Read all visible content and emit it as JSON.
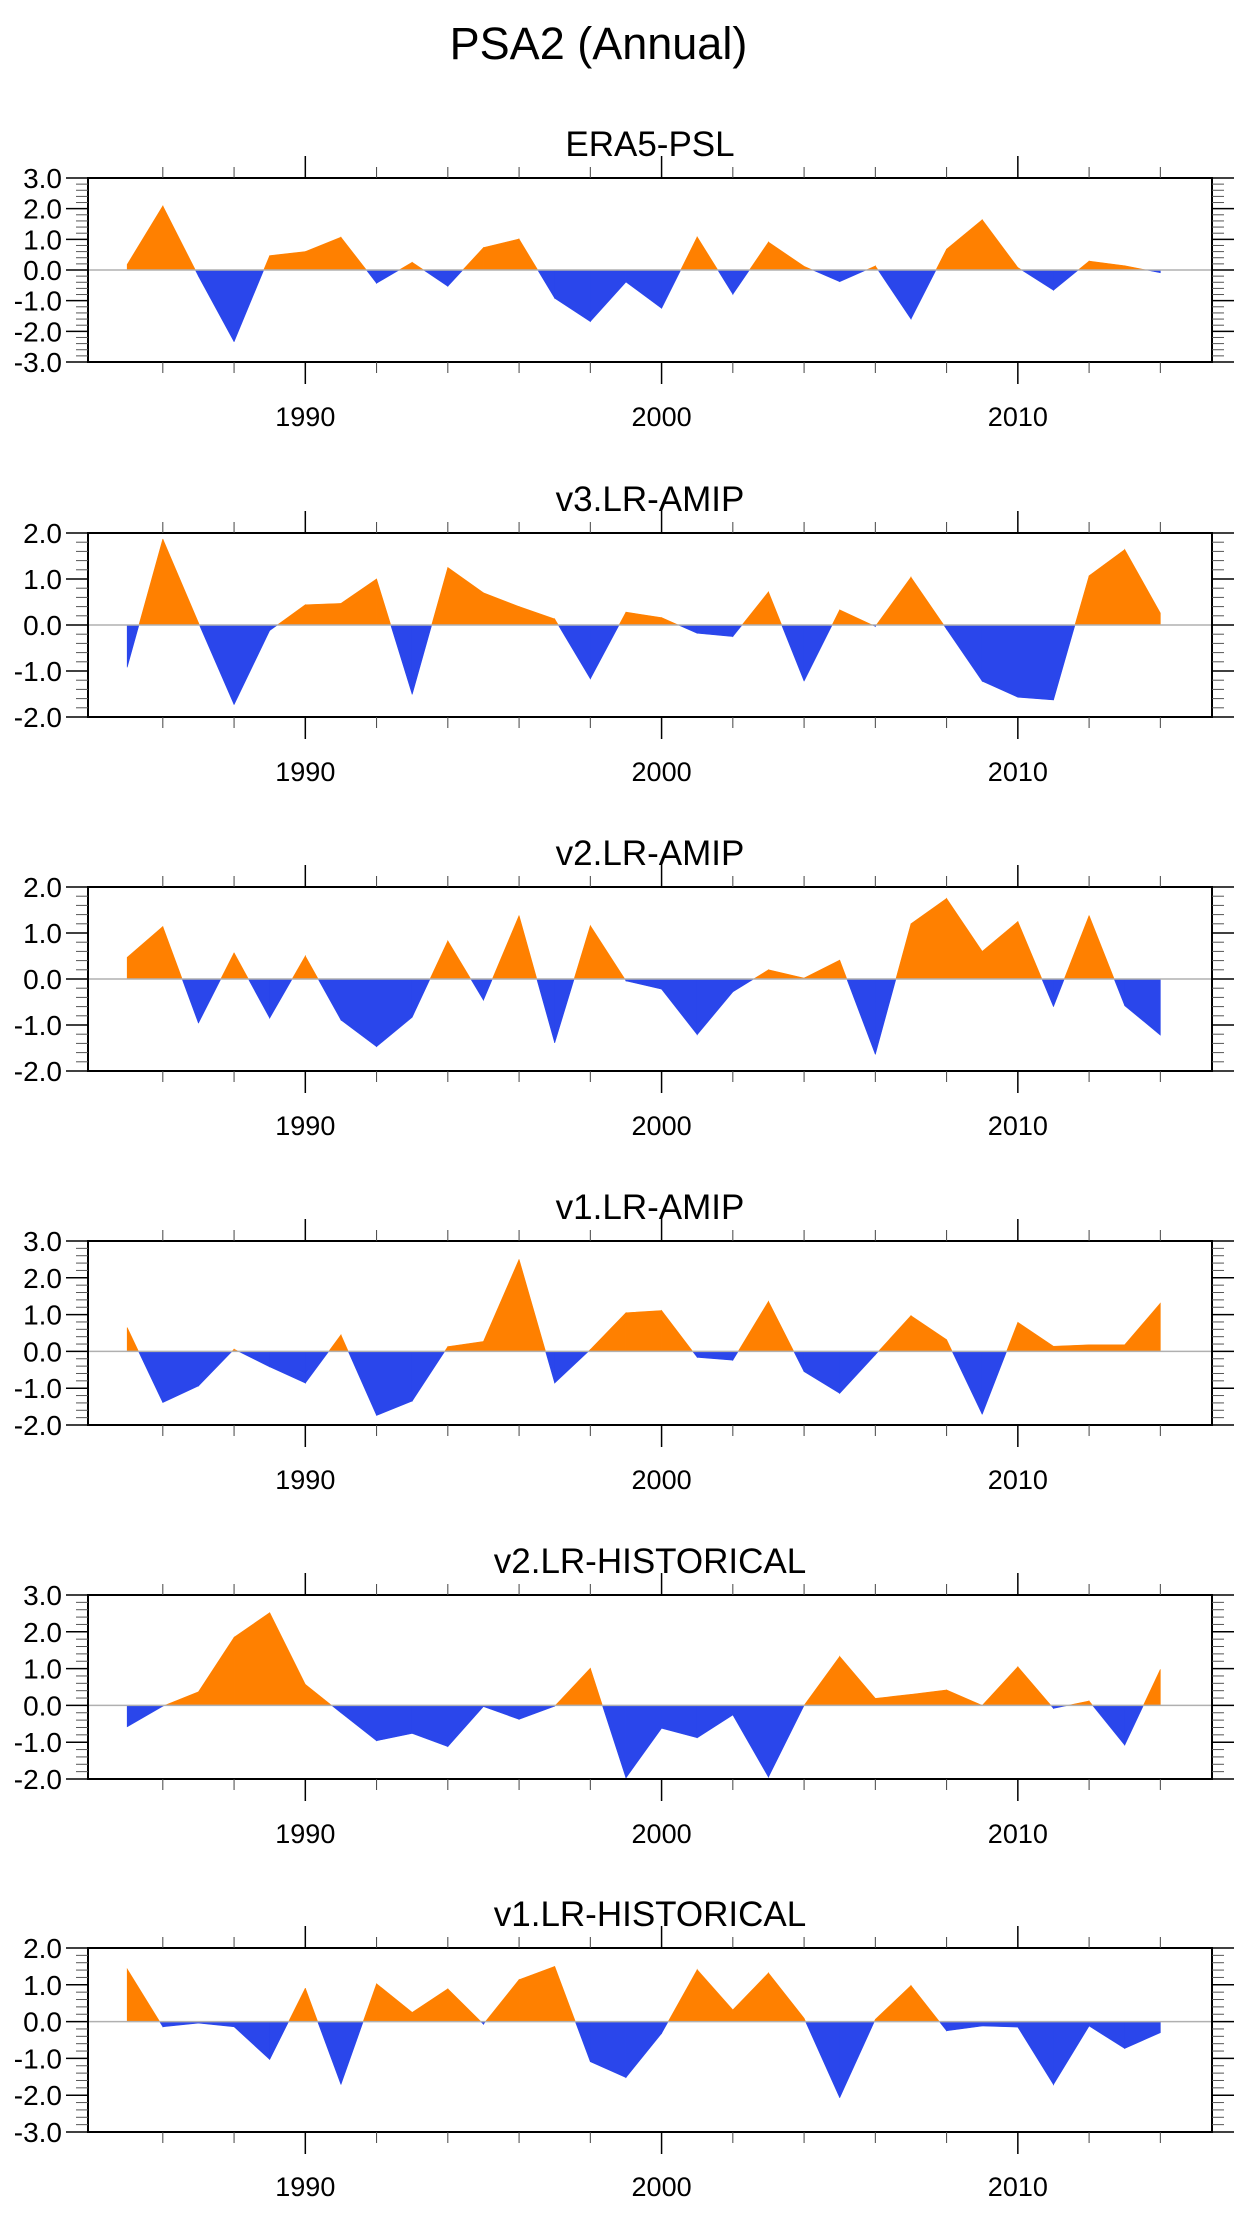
{
  "figure": {
    "title": "PSA2 (Annual)"
  },
  "colors": {
    "positive": "#FF8000",
    "negative": "#2A46EB",
    "zero_line": "#B0B0B0",
    "frame": "#000000"
  },
  "chart_data": [
    {
      "type": "area",
      "title": "ERA5-PSL",
      "xlabel": "",
      "ylabel": "",
      "x": [
        1985,
        1986,
        1987,
        1988,
        1989,
        1990,
        1991,
        1992,
        1993,
        1994,
        1995,
        1996,
        1997,
        1998,
        1999,
        2000,
        2001,
        2002,
        2003,
        2004,
        2005,
        2006,
        2007,
        2008,
        2009,
        2010,
        2011,
        2012,
        2013,
        2014
      ],
      "values": [
        0.18,
        2.09,
        -0.2,
        -2.34,
        0.47,
        0.6,
        1.07,
        -0.43,
        0.25,
        -0.53,
        0.73,
        1.01,
        -0.92,
        -1.68,
        -0.39,
        -1.25,
        1.08,
        -0.79,
        0.91,
        0.12,
        -0.38,
        0.13,
        -1.6,
        0.68,
        1.64,
        0.08,
        -0.66,
        0.29,
        0.14,
        -0.09
      ],
      "ylim": [
        -3,
        3
      ],
      "yticks": [
        "3.0",
        "2.0",
        "1.0",
        "0.0",
        "-1.0",
        "-2.0",
        "-3.0"
      ],
      "xlim": [
        1983.9,
        2015.45
      ],
      "xticks": [
        "1990",
        "2000",
        "2010"
      ],
      "grid": false,
      "fill_above_zero": "orange",
      "fill_below_zero": "blue"
    },
    {
      "type": "area",
      "title": "v3.LR-AMIP",
      "xlabel": "",
      "ylabel": "",
      "x": [
        1985,
        1986,
        1987,
        1988,
        1989,
        1990,
        1991,
        1992,
        1993,
        1994,
        1995,
        1996,
        1997,
        1998,
        1999,
        2000,
        2001,
        2002,
        2003,
        2004,
        2005,
        2006,
        2007,
        2008,
        2009,
        2010,
        2011,
        2012,
        2013,
        2014
      ],
      "values": [
        -0.92,
        1.87,
        0.05,
        -1.73,
        -0.12,
        0.44,
        0.47,
        1.0,
        -1.51,
        1.25,
        0.7,
        0.4,
        0.13,
        -1.17,
        0.28,
        0.16,
        -0.18,
        -0.25,
        0.72,
        -1.22,
        0.33,
        -0.03,
        1.04,
        -0.09,
        -1.22,
        -1.57,
        -1.63,
        1.07,
        1.64,
        0.26
      ],
      "ylim": [
        -2,
        2
      ],
      "yticks": [
        "2.0",
        "1.0",
        "0.0",
        "-1.0",
        "-2.0"
      ],
      "xlim": [
        1983.9,
        2015.45
      ],
      "xticks": [
        "1990",
        "2000",
        "2010"
      ],
      "grid": false
    },
    {
      "type": "area",
      "title": "v2.LR-AMIP",
      "xlabel": "",
      "ylabel": "",
      "x": [
        1985,
        1986,
        1987,
        1988,
        1989,
        1990,
        1991,
        1992,
        1993,
        1994,
        1995,
        1996,
        1997,
        1998,
        1999,
        2000,
        2001,
        2002,
        2003,
        2004,
        2005,
        2006,
        2007,
        2008,
        2009,
        2010,
        2011,
        2012,
        2013,
        2014
      ],
      "values": [
        0.47,
        1.14,
        -0.96,
        0.57,
        -0.85,
        0.5,
        -0.89,
        -1.47,
        -0.83,
        0.83,
        -0.46,
        1.38,
        -1.39,
        1.16,
        -0.04,
        -0.22,
        -1.21,
        -0.28,
        0.2,
        0.02,
        0.41,
        -1.64,
        1.2,
        1.75,
        0.6,
        1.25,
        -0.6,
        1.38,
        -0.58,
        -1.22
      ],
      "ylim": [
        -2,
        2
      ],
      "yticks": [
        "2.0",
        "1.0",
        "0.0",
        "-1.0",
        "-2.0"
      ],
      "xlim": [
        1983.9,
        2015.45
      ],
      "xticks": [
        "1990",
        "2000",
        "2010"
      ],
      "grid": false
    },
    {
      "type": "area",
      "title": "v1.LR-AMIP",
      "xlabel": "",
      "ylabel": "",
      "x": [
        1985,
        1986,
        1987,
        1988,
        1989,
        1990,
        1991,
        1992,
        1993,
        1994,
        1995,
        1996,
        1997,
        1998,
        1999,
        2000,
        2001,
        2002,
        2003,
        2004,
        2005,
        2006,
        2007,
        2008,
        2009,
        2010,
        2011,
        2012,
        2013,
        2014
      ],
      "values": [
        0.65,
        -1.39,
        -0.94,
        0.06,
        -0.42,
        -0.86,
        0.45,
        -1.74,
        -1.35,
        0.13,
        0.27,
        2.5,
        -0.86,
        0.05,
        1.05,
        1.11,
        -0.16,
        -0.24,
        1.36,
        -0.55,
        -1.14,
        -0.09,
        0.97,
        0.32,
        -1.71,
        0.79,
        0.14,
        0.18,
        0.18,
        1.31
      ],
      "ylim": [
        -2,
        3
      ],
      "yticks": [
        "3.0",
        "2.0",
        "1.0",
        "0.0",
        "-1.0",
        "-2.0"
      ],
      "xlim": [
        1983.9,
        2015.45
      ],
      "xticks": [
        "1990",
        "2000",
        "2010"
      ],
      "grid": false
    },
    {
      "type": "area",
      "title": "v2.LR-HISTORICAL",
      "xlabel": "",
      "ylabel": "",
      "x": [
        1985,
        1986,
        1987,
        1988,
        1989,
        1990,
        1991,
        1992,
        1993,
        1994,
        1995,
        1996,
        1997,
        1998,
        1999,
        2000,
        2001,
        2002,
        2003,
        2004,
        2005,
        2006,
        2007,
        2008,
        2009,
        2010,
        2011,
        2012,
        2013,
        2014
      ],
      "values": [
        -0.58,
        -0.02,
        0.37,
        1.85,
        2.52,
        0.57,
        -0.2,
        -0.96,
        -0.76,
        -1.12,
        -0.03,
        -0.38,
        -0.02,
        1.01,
        -1.97,
        -0.62,
        -0.88,
        -0.26,
        -1.95,
        0.0,
        1.33,
        0.19,
        0.3,
        0.42,
        0.0,
        1.05,
        -0.08,
        0.12,
        -1.08,
        0.98
      ],
      "ylim": [
        -2,
        3
      ],
      "yticks": [
        "3.0",
        "2.0",
        "1.0",
        "0.0",
        "-1.0",
        "-2.0"
      ],
      "xlim": [
        1983.9,
        2015.45
      ],
      "xticks": [
        "1990",
        "2000",
        "2010"
      ],
      "grid": false
    },
    {
      "type": "area",
      "title": "v1.LR-HISTORICAL",
      "xlabel": "",
      "ylabel": "",
      "x": [
        1985,
        1986,
        1987,
        1988,
        1989,
        1990,
        1991,
        1992,
        1993,
        1994,
        1995,
        1996,
        1997,
        1998,
        1999,
        2000,
        2001,
        2002,
        2003,
        2004,
        2005,
        2006,
        2007,
        2008,
        2009,
        2010,
        2011,
        2012,
        2013,
        2014
      ],
      "values": [
        1.43,
        -0.14,
        -0.04,
        -0.14,
        -1.03,
        0.91,
        -1.71,
        1.03,
        0.25,
        0.89,
        -0.07,
        1.14,
        1.5,
        -1.09,
        -1.52,
        -0.32,
        1.41,
        0.32,
        1.32,
        0.09,
        -2.07,
        0.06,
        0.98,
        -0.25,
        -0.12,
        -0.15,
        -1.71,
        -0.12,
        -0.73,
        -0.3
      ],
      "ylim": [
        -3,
        2
      ],
      "yticks": [
        "2.0",
        "1.0",
        "0.0",
        "-1.0",
        "-2.0",
        "-3.0"
      ],
      "xlim": [
        1983.9,
        2015.45
      ],
      "xticks": [
        "1990",
        "2000",
        "2010"
      ],
      "grid": false
    }
  ]
}
